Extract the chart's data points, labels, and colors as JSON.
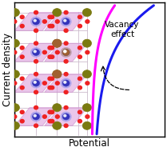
{
  "xlabel": "Potential",
  "ylabel": "Current density",
  "bg_color": "#ffffff",
  "magenta_color": "#ff00ff",
  "blue_color": "#1a1aee",
  "curve_lw": 2.2,
  "annotation_text": "Vacancy\neffect",
  "annotation_fontsize": 7.5,
  "cell_color": "#dda0dd",
  "cell_edge_color": "#cc88cc",
  "cell_alpha": 0.6,
  "atom_blue_color": "#3333bb",
  "atom_blue_halo": "#9999ee",
  "atom_olive_color": "#7a7a10",
  "atom_brown_color": "#a06030",
  "atom_red_color": "#ee2222",
  "bond_color": "#ccbbcc",
  "bond_lw": 0.6
}
